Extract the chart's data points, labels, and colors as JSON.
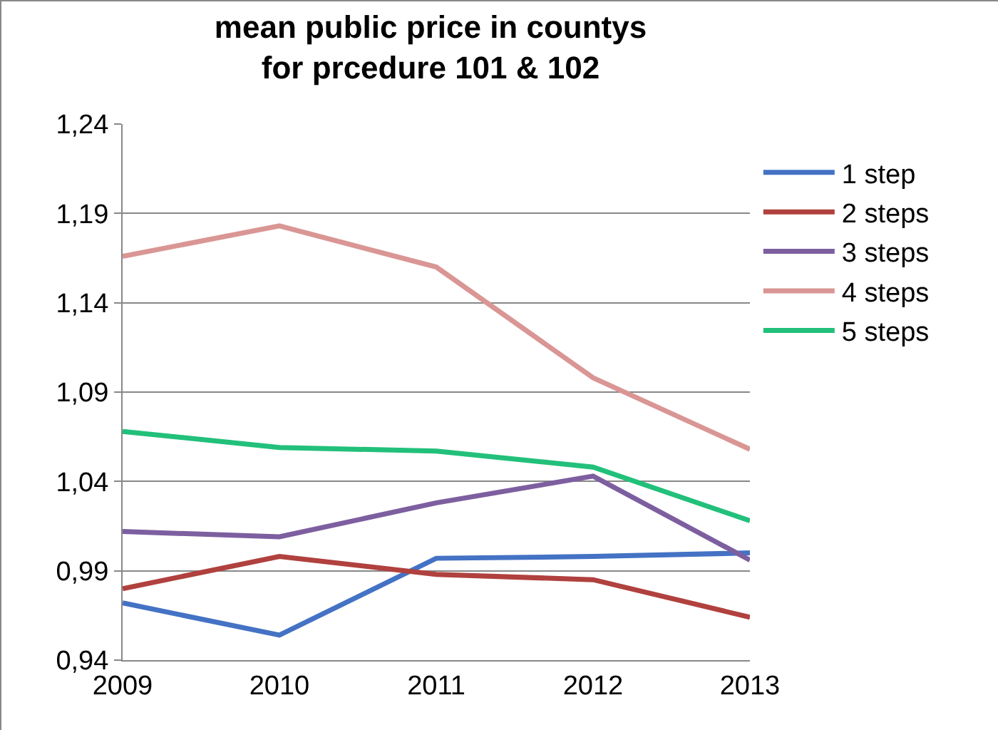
{
  "chart_data": {
    "type": "line",
    "title": "mean public price in countys for prcedure 101 & 102",
    "categories": [
      "2009",
      "2010",
      "2011",
      "2012",
      "2013"
    ],
    "series": [
      {
        "name": "1 step",
        "color": "#4472c4",
        "values": [
          0.972,
          0.954,
          0.997,
          0.998,
          1.0
        ]
      },
      {
        "name": "2 steps",
        "color": "#b0413e",
        "values": [
          0.98,
          0.998,
          0.988,
          0.985,
          0.964
        ]
      },
      {
        "name": "3 steps",
        "color": "#7d5fa0",
        "values": [
          1.012,
          1.009,
          1.028,
          1.043,
          0.996
        ]
      },
      {
        "name": "4 steps",
        "color": "#d99694",
        "values": [
          1.166,
          1.183,
          1.16,
          1.098,
          1.058
        ]
      },
      {
        "name": "5 steps",
        "color": "#22c07a",
        "values": [
          1.068,
          1.059,
          1.057,
          1.048,
          1.018
        ]
      }
    ],
    "ylim": [
      0.94,
      1.24
    ],
    "yticks": [
      {
        "value": 0.94,
        "label": "0,94"
      },
      {
        "value": 0.99,
        "label": "0,99"
      },
      {
        "value": 1.04,
        "label": "1,04"
      },
      {
        "value": 1.09,
        "label": "1,09"
      },
      {
        "value": 1.14,
        "label": "1,14"
      },
      {
        "value": 1.19,
        "label": "1,19"
      },
      {
        "value": 1.24,
        "label": "1,24"
      }
    ],
    "grid": "y",
    "legend": "right",
    "marker": "none",
    "line_style": "solid"
  }
}
